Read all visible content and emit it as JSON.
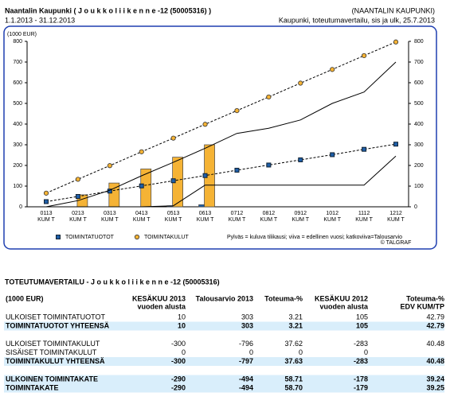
{
  "header": {
    "title": "Naantalin Kaupunki ( J o u k k o l i i k e n n e  -12 (50005316) )",
    "organization": "(NAANTALIN KAUPUNKI)",
    "period": "1.1.2013 - 31.12.2013",
    "report": "Kaupunki, toteutumavertailu, sis ja ulk, 25.7.2013"
  },
  "chart_data": {
    "type": "combo",
    "y_label": "(1000 EUR)",
    "categories": [
      "0113",
      "0213",
      "0313",
      "0413",
      "0513",
      "0613",
      "0712",
      "0812",
      "0912",
      "1012",
      "1112",
      "1212"
    ],
    "category_sublabel": "KUM T",
    "ylim": [
      0,
      800
    ],
    "yticks": [
      0,
      100,
      200,
      300,
      400,
      500,
      600,
      700,
      800
    ],
    "series": [
      {
        "name": "TOIMINTATUOTOT",
        "color": "#1f5fa8",
        "marker": "square",
        "current": [
          0,
          0,
          0,
          0,
          5,
          10,
          null,
          null,
          null,
          null,
          null,
          null
        ],
        "previous_year": [
          0,
          0,
          0,
          0,
          5,
          105,
          105,
          105,
          105,
          105,
          105,
          245
        ],
        "budget": [
          25,
          50,
          76,
          101,
          126,
          151,
          177,
          202,
          227,
          252,
          278,
          303
        ]
      },
      {
        "name": "TOIMINTAKULUT",
        "color": "#f5b335",
        "marker": "circle",
        "current": [
          0,
          58,
          115,
          183,
          240,
          300,
          null,
          null,
          null,
          null,
          null,
          null
        ],
        "previous_year": [
          0,
          30,
          80,
          150,
          215,
          283,
          355,
          380,
          420,
          500,
          555,
          700
        ],
        "budget": [
          66,
          133,
          199,
          266,
          332,
          399,
          465,
          531,
          598,
          664,
          731,
          797
        ]
      }
    ],
    "legend_note": "Pylväs = kuluva tilikausi; viiva = edellinen vuosi; katkoviiva=Talousarvio",
    "credit": "© TALGRAF"
  },
  "table": {
    "title": "TOTEUTUMAVERTAILU - J o u k k o l i i k e n n e  -12 (50005316)",
    "columns": [
      [
        "(1000 EUR)"
      ],
      [
        "KESÄKUU 2013",
        "vuoden alusta"
      ],
      [
        "Talousarvio 2013"
      ],
      [
        "Toteuma-%"
      ],
      [
        "KESÄKUU 2012",
        "vuoden alusta"
      ],
      [
        "Toteuma-%",
        "EDV KUM/TP"
      ]
    ],
    "groups": [
      [
        {
          "cells": [
            "ULKOISET TOIMINTATUOTOT",
            "10",
            "303",
            "3.21",
            "105",
            "42.79"
          ],
          "total": false
        },
        {
          "cells": [
            "TOIMINTATUOTOT YHTEENSÄ",
            "10",
            "303",
            "3.21",
            "105",
            "42.79"
          ],
          "total": true
        }
      ],
      [
        {
          "cells": [
            "ULKOISET TOIMINTAKULUT",
            "-300",
            "-796",
            "37.62",
            "-283",
            "40.48"
          ],
          "total": false
        },
        {
          "cells": [
            "SISÄISET TOIMINTAKULUT",
            "0",
            "0",
            "0",
            "0"
          ],
          "total": false
        },
        {
          "cells": [
            "TOIMINTAKULUT YHTEENSÄ",
            "-300",
            "-797",
            "37.63",
            "-283",
            "40.48"
          ],
          "total": true
        }
      ],
      [
        {
          "cells": [
            "ULKOINEN TOIMINTAKATE",
            "-290",
            "-494",
            "58.71",
            "-178",
            "39.24"
          ],
          "total": true
        },
        {
          "cells": [
            "TOIMINTAKATE",
            "-290",
            "-494",
            "58.70",
            "-179",
            "39.25"
          ],
          "total": true
        }
      ]
    ]
  }
}
